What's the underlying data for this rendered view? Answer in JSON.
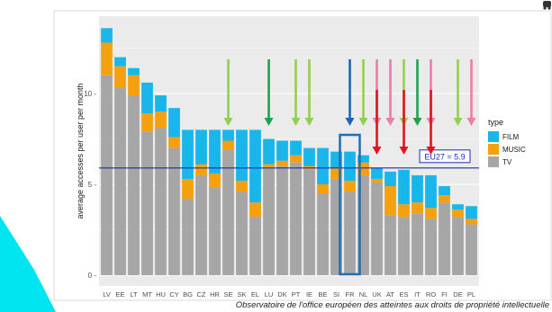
{
  "caption": "Observatoire de l'office européen des atteintes aux droits de propriété intellectuelle",
  "colors": {
    "film": "#1AB5EA",
    "music": "#F5A10F",
    "tv": "#A6A6A6",
    "panel": "#EBEBEB",
    "grid": "#FFFFFF",
    "average_line": "#1A2DB0",
    "highlight_box": "#1E6FB5",
    "accent_triangle": "#00E5F0",
    "arrow_light_green": "#8FD14F",
    "arrow_dark_green": "#1AA34A",
    "arrow_blue": "#1E64B4",
    "arrow_pink": "#F07AA8",
    "arrow_red": "#E0141E"
  },
  "chart_data": {
    "type": "bar",
    "stacked": true,
    "ylabel": "average accesses per user per month",
    "xlabel": "",
    "ylim": [
      0,
      14
    ],
    "yticks": [
      0,
      5,
      10
    ],
    "ytick_labels": [
      "0 -",
      "5 -",
      "10 -"
    ],
    "grid": true,
    "legend_title": "type",
    "legend_position": "right",
    "categories": [
      "LV",
      "EE",
      "LT",
      "MT",
      "HU",
      "CY",
      "BG",
      "CZ",
      "HR",
      "SE",
      "SK",
      "EL",
      "LU",
      "DK",
      "PT",
      "IE",
      "BE",
      "SI",
      "FR",
      "NL",
      "UK",
      "AT",
      "ES",
      "IT",
      "RO",
      "FI",
      "DE",
      "PL"
    ],
    "series": [
      {
        "name": "TV",
        "key": "tv",
        "values": [
          11.0,
          10.3,
          9.9,
          7.9,
          8.1,
          7.0,
          4.2,
          5.5,
          4.8,
          6.9,
          4.6,
          3.2,
          5.9,
          6.0,
          6.2,
          5.8,
          4.5,
          5.3,
          4.6,
          5.5,
          5.1,
          3.3,
          3.2,
          3.4,
          3.1,
          4.0,
          3.2,
          2.8
        ]
      },
      {
        "name": "MUSIC",
        "key": "music",
        "values": [
          1.8,
          1.2,
          1.1,
          1.0,
          0.9,
          0.6,
          1.1,
          0.6,
          0.8,
          0.5,
          0.6,
          0.8,
          0.2,
          0.3,
          0.4,
          0.2,
          0.5,
          0.6,
          0.6,
          0.7,
          0.2,
          1.6,
          0.7,
          0.6,
          0.6,
          0.4,
          0.4,
          0.3
        ]
      },
      {
        "name": "FILM",
        "key": "film",
        "values": [
          0.8,
          0.5,
          0.4,
          1.7,
          0.9,
          1.6,
          2.7,
          1.9,
          2.4,
          0.6,
          2.8,
          4.0,
          1.4,
          1.1,
          0.8,
          1.0,
          2.0,
          0.9,
          1.6,
          0.4,
          0.6,
          0.8,
          1.9,
          1.5,
          1.8,
          0.5,
          0.3,
          0.7
        ]
      }
    ],
    "reference_line": {
      "value": 5.9,
      "label": "EU27 = 5.9"
    },
    "highlight_category": "FR",
    "annotation_arrows": [
      {
        "category": "SE",
        "color": "arrow_light_green"
      },
      {
        "category": "LU",
        "color": "arrow_dark_green"
      },
      {
        "category": "PT",
        "color": "arrow_light_green"
      },
      {
        "category": "IE",
        "color": "arrow_light_green"
      },
      {
        "category": "FR",
        "color": "arrow_blue"
      },
      {
        "category": "NL",
        "color": "arrow_light_green"
      },
      {
        "category": "UK",
        "color": "arrow_pink"
      },
      {
        "category": "AT",
        "color": "arrow_pink"
      },
      {
        "category": "ES",
        "color": "arrow_light_green"
      },
      {
        "category": "IT",
        "color": "arrow_dark_green"
      },
      {
        "category": "RO",
        "color": "arrow_pink"
      },
      {
        "category": "DE",
        "color": "arrow_light_green"
      },
      {
        "category": "PL",
        "color": "arrow_pink"
      },
      {
        "category": "UK",
        "color": "arrow_red",
        "short": true
      },
      {
        "category": "ES",
        "color": "arrow_red",
        "short": true
      },
      {
        "category": "RO",
        "color": "arrow_red",
        "short": true
      }
    ]
  }
}
